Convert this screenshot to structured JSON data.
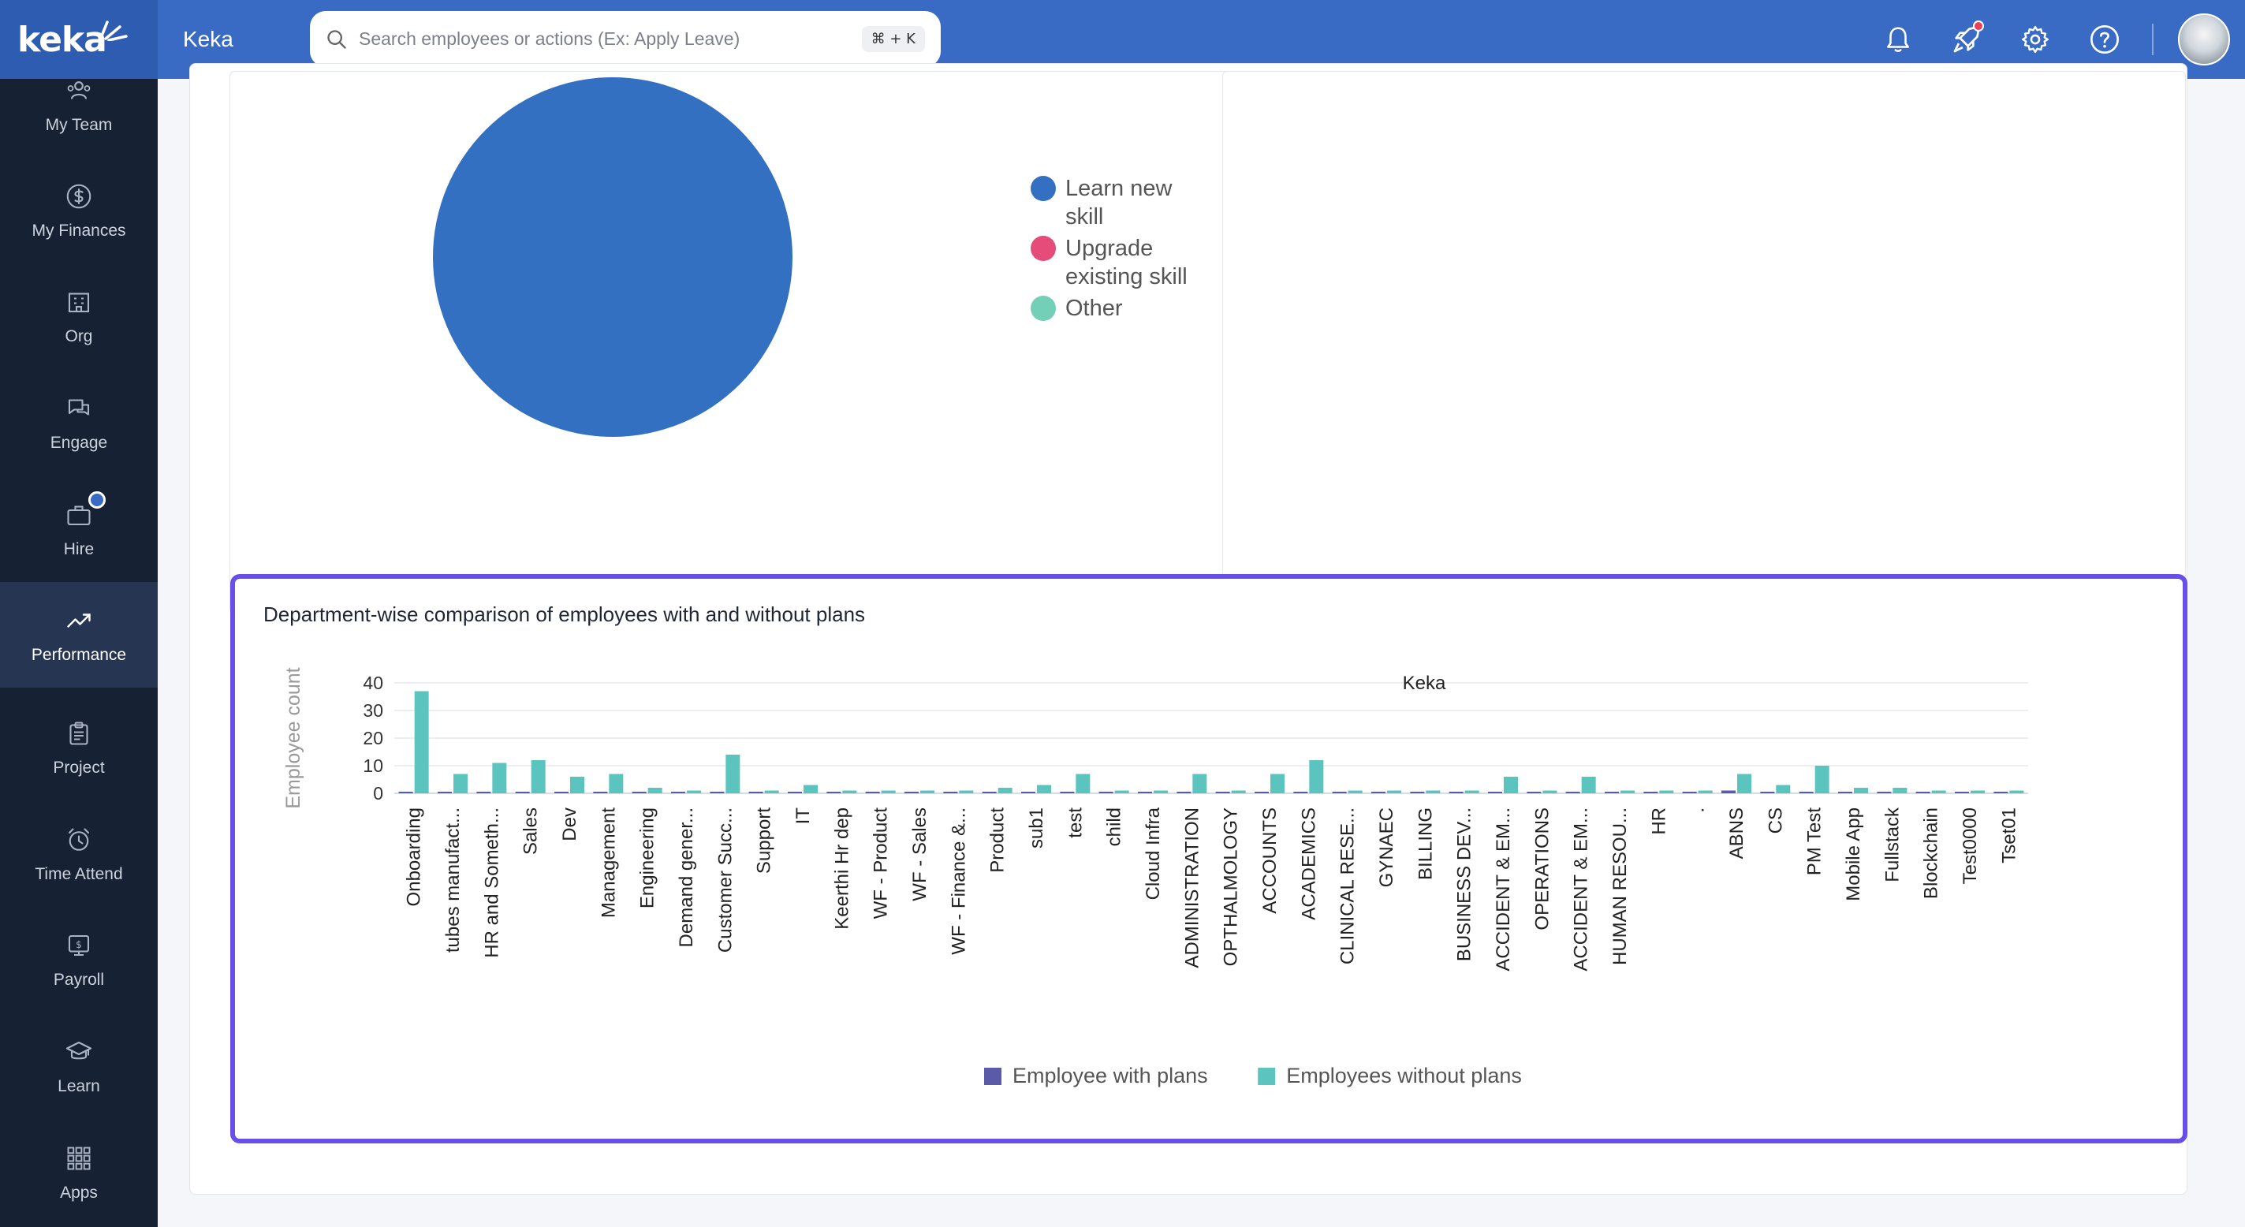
{
  "topbar": {
    "logo": "keka",
    "org_name": "Keka",
    "search_placeholder": "Search employees or actions (Ex: Apply Leave)",
    "search_shortcut": "⌘ + K",
    "icons": [
      "bell-icon",
      "rocket-icon",
      "gear-icon",
      "help-icon"
    ],
    "notification_dot_color": "#e8405a"
  },
  "sidebar": {
    "items": [
      {
        "label": "My Team",
        "icon": "team-icon"
      },
      {
        "label": "My Finances",
        "icon": "dollar-icon"
      },
      {
        "label": "Org",
        "icon": "building-icon"
      },
      {
        "label": "Engage",
        "icon": "chat-icon"
      },
      {
        "label": "Hire",
        "icon": "briefcase-icon"
      },
      {
        "label": "Performance",
        "icon": "trend-icon",
        "active": true
      },
      {
        "label": "Project",
        "icon": "clipboard-icon"
      },
      {
        "label": "Time Attend",
        "icon": "alarm-icon"
      },
      {
        "label": "Payroll",
        "icon": "payslip-icon"
      },
      {
        "label": "Learn",
        "icon": "graduation-icon"
      },
      {
        "label": "Apps",
        "icon": "grid-icon"
      }
    ]
  },
  "pie": {
    "legend": [
      {
        "label_line1": "Learn new",
        "label_line2": "skill",
        "color": "#3470c2"
      },
      {
        "label_line1": "Upgrade",
        "label_line2": "existing skill",
        "color": "#e64c7a"
      },
      {
        "label_line1": "Other",
        "label_line2": "",
        "color": "#74cfb8"
      }
    ]
  },
  "chart_data": {
    "type": "bar",
    "title": "Department-wise comparison of employees with and without plans",
    "subtitle": "Keka",
    "xlabel": "",
    "ylabel": "Employee count",
    "ylim": [
      0,
      40
    ],
    "yticks": [
      0,
      10,
      20,
      30,
      40
    ],
    "grid": true,
    "legend_position": "bottom-center",
    "categories": [
      "Onboarding",
      "tubes manufact...",
      "HR and Someth...",
      "Sales",
      "Dev",
      "Management",
      "Engineering",
      "Demand gener...",
      "Customer Succ...",
      "Support",
      "IT",
      "Keerthi Hr dep",
      "WF - Product",
      "WF - Sales",
      "WF - Finance &...",
      "Product",
      "sub1",
      "test",
      "child",
      "Cloud Infra",
      "ADMINISTRATION",
      "OPTHALMOLOGY",
      "ACCOUNTS",
      "ACADEMICS",
      "CLINICAL RESE...",
      "GYNAEC",
      "BILLING",
      "BUSINESS DEV...",
      "ACCIDENT & EM...",
      "OPERATIONS",
      "ACCIDENT & EM...",
      "HUMAN RESOU...",
      "HR",
      ".",
      "ABNS",
      "CS",
      "PM Test",
      "Mobile App",
      "Fullstack",
      "Blockchain",
      "Test0000",
      "Tset01"
    ],
    "series": [
      {
        "name": "Employee with plans",
        "color": "#5b5aa8",
        "values": [
          0,
          0,
          0,
          0,
          0,
          0,
          0,
          0,
          0,
          0,
          0,
          0,
          0,
          0,
          0,
          0,
          0,
          0,
          0,
          0,
          0,
          0,
          0,
          0,
          0,
          0,
          0,
          0,
          0,
          0,
          0,
          0,
          0,
          0,
          1,
          0,
          0,
          0,
          0,
          0,
          0,
          0
        ]
      },
      {
        "name": "Employees without plans",
        "color": "#5cc4bf",
        "values": [
          37,
          7,
          11,
          12,
          6,
          7,
          2,
          1,
          14,
          1,
          3,
          1,
          1,
          1,
          1,
          2,
          3,
          7,
          1,
          1,
          7,
          1,
          7,
          12,
          1,
          1,
          1,
          1,
          6,
          1,
          6,
          1,
          1,
          1,
          7,
          3,
          10,
          2,
          2,
          1,
          1,
          1
        ]
      }
    ]
  }
}
